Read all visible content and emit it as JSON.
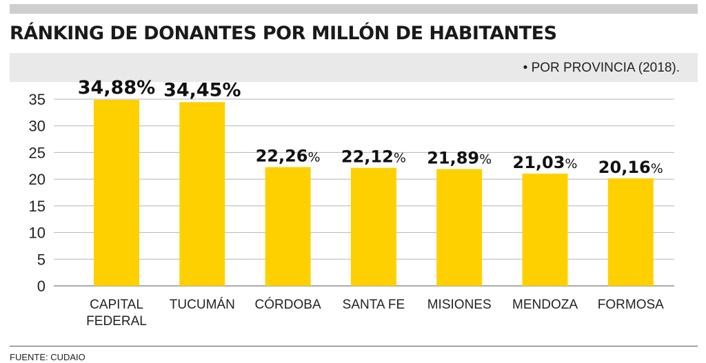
{
  "title": "RÁNKING DE DONANTES POR MILLÓN DE HABITANTES",
  "subtitle": "• POR PROVINCIA (2018).",
  "source": "FUENTE: CUDAIO",
  "colors": {
    "bar": "#FFD000",
    "grid": "#b5b5b5",
    "band": "#e9e9e9",
    "top_bar": "#cfcfcf"
  },
  "chart_data": {
    "type": "bar",
    "categories": [
      [
        "CAPITAL",
        "FEDERAL"
      ],
      [
        "TUCUMÁN"
      ],
      [
        "CÓRDOBA"
      ],
      [
        "SANTA FE"
      ],
      [
        "MISIONES"
      ],
      [
        "MENDOZA"
      ],
      [
        "FORMOSA"
      ]
    ],
    "values": [
      34.88,
      34.45,
      22.26,
      22.12,
      21.89,
      21.03,
      20.16
    ],
    "value_labels": [
      "34,88",
      "34,45",
      "22,26",
      "22,12",
      "21,89",
      "21,03",
      "20,16"
    ],
    "value_suffix": "%",
    "yticks": [
      "0",
      "5",
      "10",
      "15",
      "20",
      "25",
      "30",
      "35"
    ],
    "ylim": [
      0,
      35
    ],
    "grid": true,
    "legend": false
  }
}
